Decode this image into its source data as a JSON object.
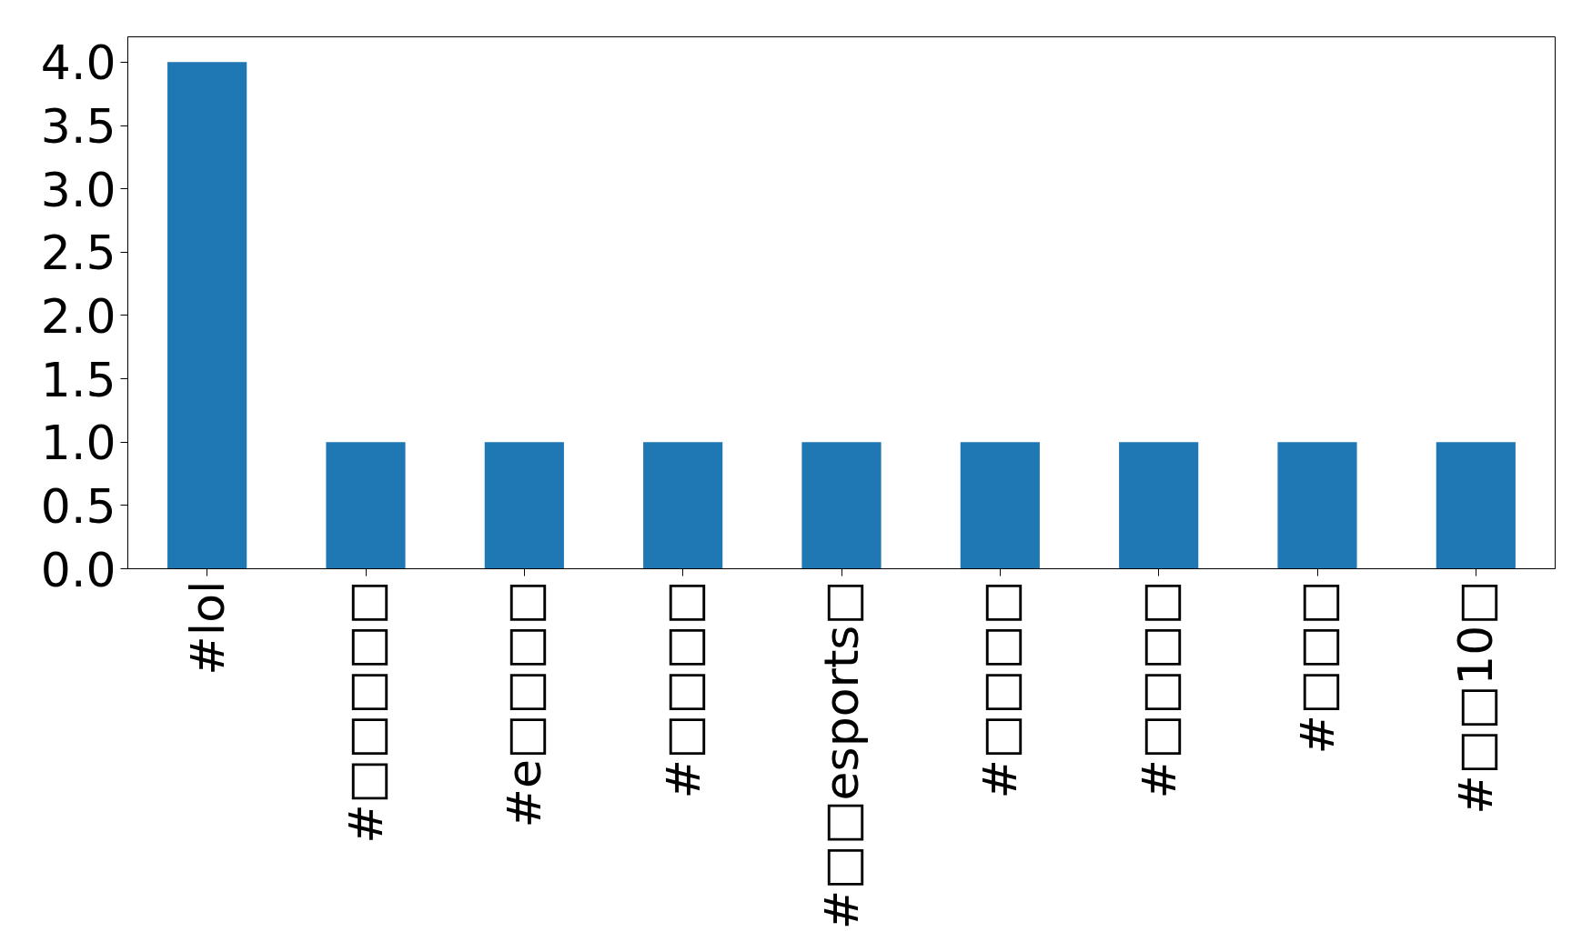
{
  "chart_data": {
    "type": "bar",
    "categories": [
      "#lol",
      "#□□□□□",
      "#e□□□□",
      "#□□□□",
      "#□□esports□",
      "#□□□□",
      "#□□□□",
      "#□□□",
      "#□□10□"
    ],
    "values": [
      4,
      1,
      1,
      1,
      1,
      1,
      1,
      1,
      1
    ],
    "color": "#1f77b4",
    "ylim": [
      0,
      4.2
    ],
    "yticks": [
      {
        "value": 0,
        "label": "0.0"
      },
      {
        "value": 0.5,
        "label": "0.5"
      },
      {
        "value": 1,
        "label": "1.0"
      },
      {
        "value": 1.5,
        "label": "1.5"
      },
      {
        "value": 2,
        "label": "2.0"
      },
      {
        "value": 2.5,
        "label": "2.5"
      },
      {
        "value": 3,
        "label": "3.0"
      },
      {
        "value": 3.5,
        "label": "3.5"
      },
      {
        "value": 4,
        "label": "4.0"
      }
    ],
    "grid": false
  }
}
